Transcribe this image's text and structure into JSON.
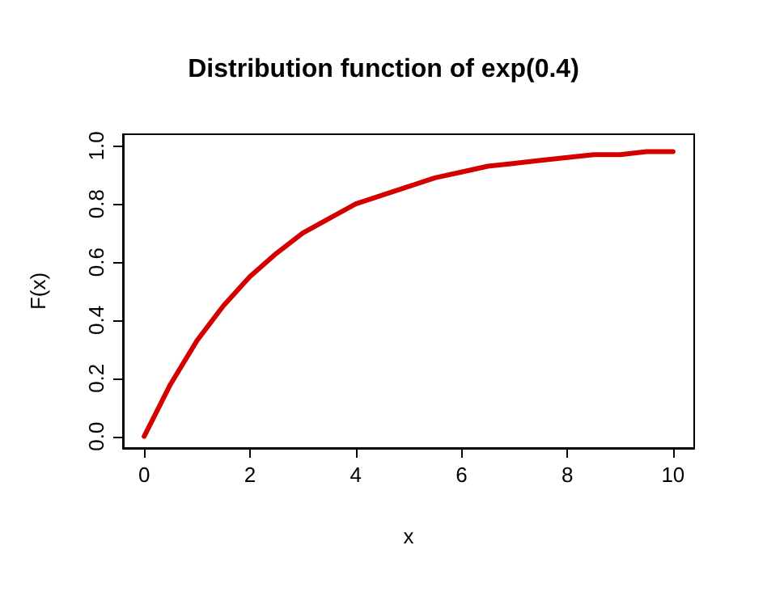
{
  "chart_data": {
    "type": "line",
    "title": "Distribution function of exp(0.4)",
    "xlabel": "x",
    "ylabel": "F(x)",
    "x": [
      0,
      0.5,
      1,
      1.5,
      2,
      2.5,
      3,
      3.5,
      4,
      4.5,
      5,
      5.5,
      6,
      6.5,
      7,
      7.5,
      8,
      8.5,
      9,
      9.5,
      10
    ],
    "series": [
      {
        "color": "#d40000",
        "values": [
          0,
          0.18,
          0.33,
          0.45,
          0.55,
          0.63,
          0.7,
          0.75,
          0.8,
          0.83,
          0.86,
          0.89,
          0.91,
          0.93,
          0.94,
          0.95,
          0.96,
          0.97,
          0.97,
          0.98,
          0.98
        ]
      }
    ],
    "xlim": [
      -0.4,
      10.4
    ],
    "xticks": [
      0,
      2,
      4,
      6,
      8,
      10
    ],
    "ylim": [
      -0.04,
      1.04
    ],
    "yticks": [
      {
        "value": 0,
        "label": "0.0"
      },
      0.2,
      0.4,
      0.6,
      0.8,
      {
        "value": 1,
        "label": "1.0"
      }
    ],
    "grid": false,
    "marker": "none",
    "line_style": "solid"
  }
}
